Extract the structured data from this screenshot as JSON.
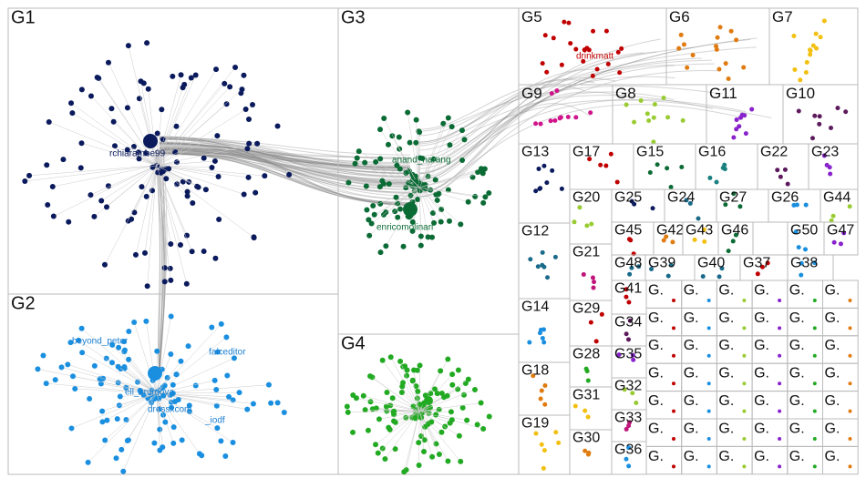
{
  "groups": [
    "G1",
    "G2",
    "G3",
    "G4",
    "G5",
    "G6",
    "G7",
    "G9",
    "G8",
    "G11",
    "G10",
    "G13",
    "G17",
    "G15",
    "G16",
    "G22",
    "G23",
    "G12",
    "G14",
    "G18",
    "G19",
    "G20",
    "G21",
    "G29",
    "G28",
    "G31",
    "G30",
    "G25",
    "G24",
    "G27",
    "G26",
    "G44",
    "G45",
    "G42",
    "G43",
    "G46",
    "G50",
    "G47",
    "G48",
    "G39",
    "G40",
    "G37",
    "G38",
    "G41",
    "G34",
    "G35",
    "G32",
    "G33",
    "G36"
  ],
  "small_groups": [
    "G.",
    "G.",
    "G.",
    "G.",
    "G.",
    "G.",
    "G.",
    "G.",
    "G.",
    "G.",
    "G.",
    "G.",
    "G.",
    "G.",
    "G.",
    "G.",
    "G.",
    "G.",
    "G.",
    "G.",
    "G.",
    "G.",
    "G.",
    "G.",
    "G.",
    "G.",
    "G.",
    "G.",
    "G.",
    "G.",
    "G.",
    "G.",
    "G.",
    "G.",
    "G.",
    "G.",
    "G.",
    "G.",
    "G.",
    "G.",
    "G.",
    "G."
  ],
  "node_labels": [
    "rchiarambe99",
    "anand_narang",
    "enricomolinari",
    "drinkmatt",
    "beyond_peter",
    "faiceditor",
    "ell_krumova",
    "dressxcom",
    "_iodf"
  ]
}
